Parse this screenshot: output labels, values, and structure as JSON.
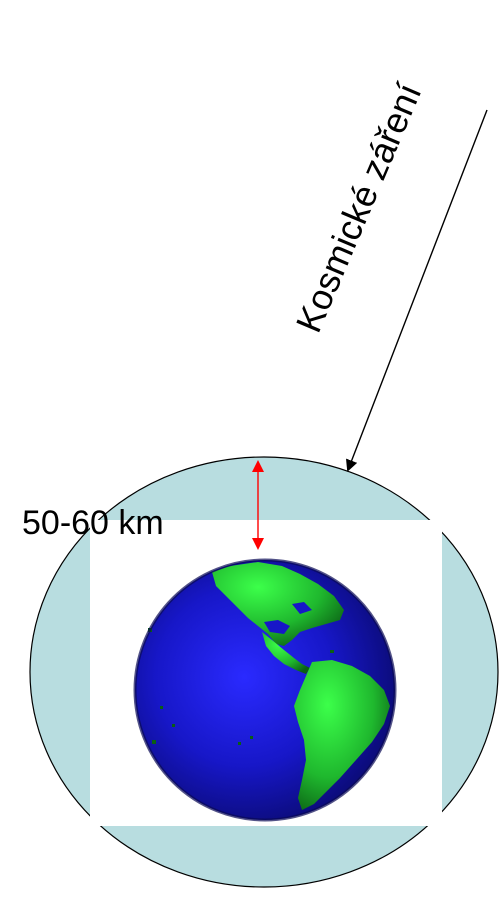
{
  "labels": {
    "cosmic_rays": "Kosmické záření",
    "altitude": "50-60 km"
  },
  "colors": {
    "atmosphere": "#b8dde0",
    "outline": "#000000",
    "altitude_arrow": "#ff0000",
    "ray_arrow": "#000000",
    "ocean": "#1a1ad6",
    "land": "#22c83a",
    "background": "#ffffff"
  },
  "icons": {
    "earth": "earth-globe-icon"
  }
}
